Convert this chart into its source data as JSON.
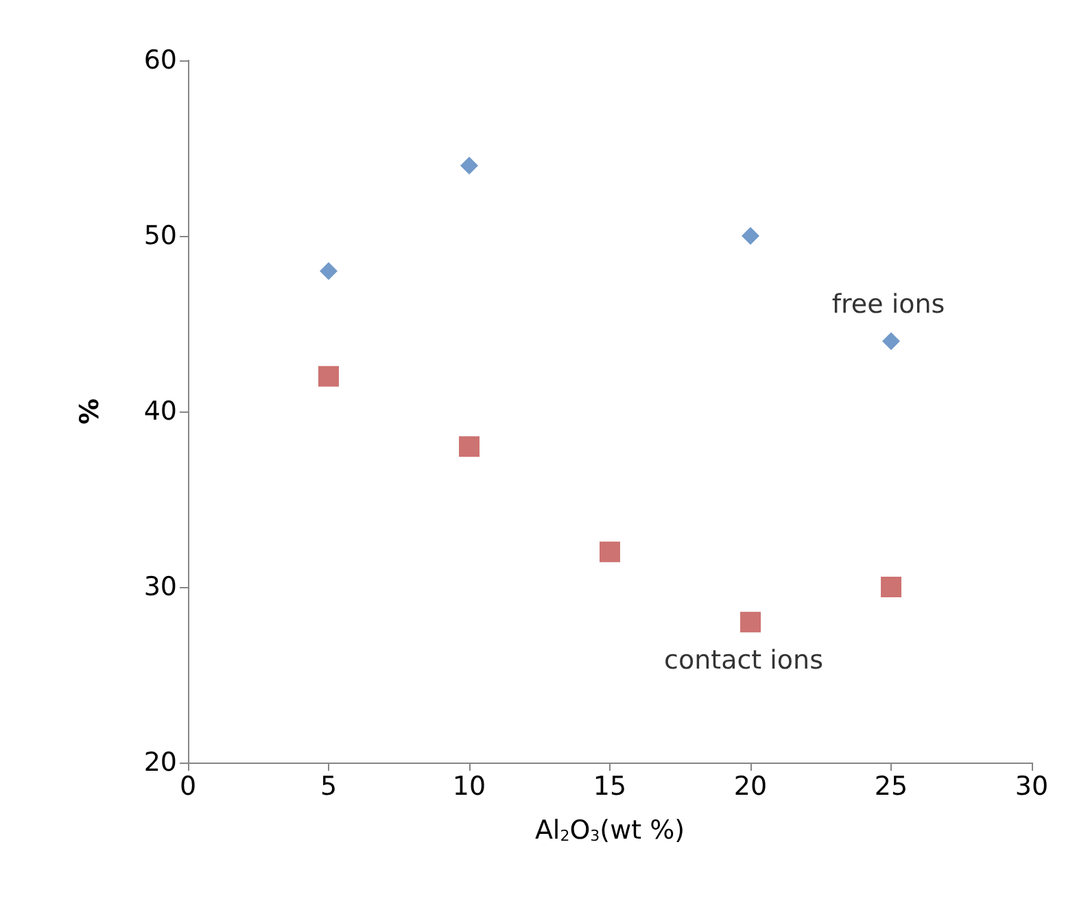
{
  "chart_data": {
    "type": "scatter",
    "xlabel": "Al$_{2}$O$_{3}$(wt %)",
    "ylabel": "%",
    "x": [
      5,
      10,
      15,
      20,
      25
    ],
    "series": [
      {
        "name": "free ions",
        "color": "#4f81bd",
        "marker": "diamond",
        "values": [
          48,
          54,
          null,
          50,
          44
        ]
      },
      {
        "name": "contact ions",
        "color": "#c0504d",
        "marker": "square",
        "values": [
          42,
          38,
          32,
          28,
          30
        ]
      }
    ],
    "xlim": [
      0,
      30
    ],
    "xticks": [
      0,
      5,
      10,
      15,
      20,
      25,
      30
    ],
    "ylim": [
      20,
      60
    ],
    "yticks": [
      20,
      30,
      40,
      50,
      60
    ],
    "grid": false,
    "legend": false
  }
}
